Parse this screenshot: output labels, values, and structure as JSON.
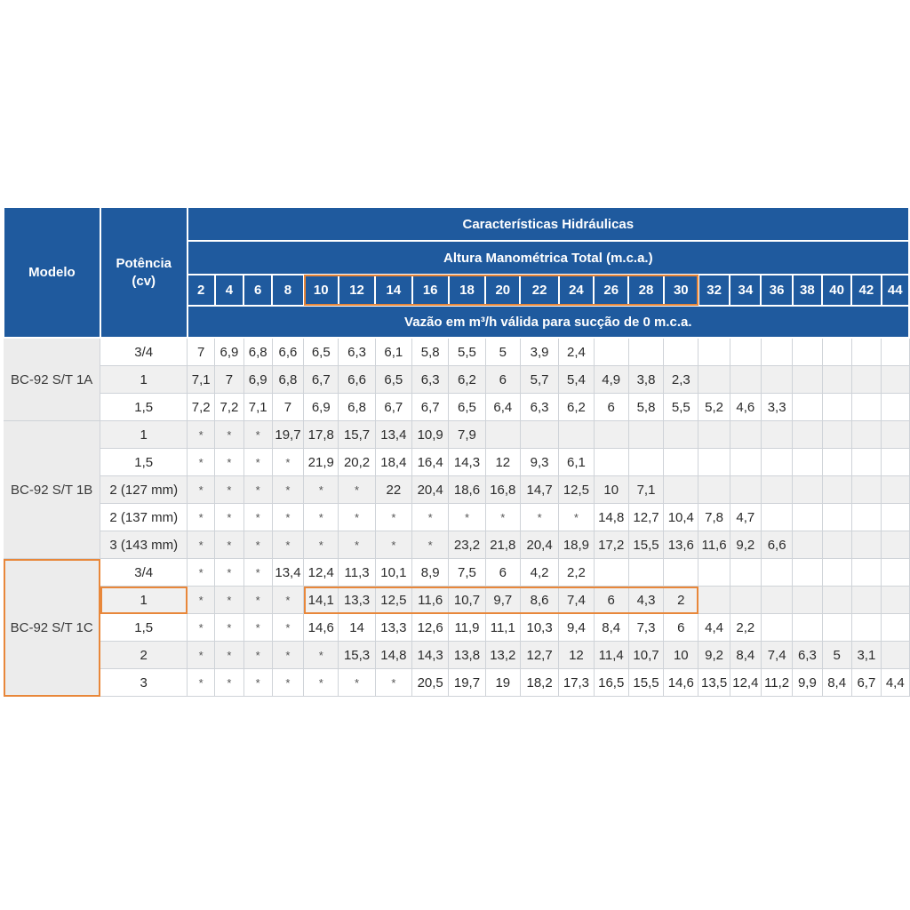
{
  "header": {
    "modelo": "Modelo",
    "potencia": "Potência (cv)",
    "caracteristicas": "Características Hidráulicas",
    "altura": "Altura Manométrica Total (m.c.a.)",
    "vazao": "Vazão em m³/h válida para sucção de 0 m.c.a.",
    "heads": [
      "2",
      "4",
      "6",
      "8",
      "10",
      "12",
      "14",
      "16",
      "18",
      "20",
      "22",
      "24",
      "26",
      "28",
      "30",
      "32",
      "34",
      "36",
      "38",
      "40",
      "42",
      "44"
    ]
  },
  "colors": {
    "header_bg": "#1f5a9e",
    "highlight": "#e8873a",
    "band": "#f0f0f0"
  },
  "groups": [
    {
      "model": "BC-92 S/T 1A",
      "rows": [
        {
          "potencia": "3/4",
          "values": [
            "7",
            "6,9",
            "6,8",
            "6,6",
            "6,5",
            "6,3",
            "6,1",
            "5,8",
            "5,5",
            "5",
            "3,9",
            "2,4",
            "",
            "",
            "",
            "",
            "",
            "",
            "",
            "",
            "",
            ""
          ]
        },
        {
          "potencia": "1",
          "values": [
            "7,1",
            "7",
            "6,9",
            "6,8",
            "6,7",
            "6,6",
            "6,5",
            "6,3",
            "6,2",
            "6",
            "5,7",
            "5,4",
            "4,9",
            "3,8",
            "2,3",
            "",
            "",
            "",
            "",
            "",
            "",
            ""
          ]
        },
        {
          "potencia": "1,5",
          "values": [
            "7,2",
            "7,2",
            "7,1",
            "7",
            "6,9",
            "6,8",
            "6,7",
            "6,7",
            "6,5",
            "6,4",
            "6,3",
            "6,2",
            "6",
            "5,8",
            "5,5",
            "5,2",
            "4,6",
            "3,3",
            "",
            "",
            "",
            ""
          ]
        }
      ]
    },
    {
      "model": "BC-92 S/T 1B",
      "rows": [
        {
          "potencia": "1",
          "values": [
            "*",
            "*",
            "*",
            "19,7",
            "17,8",
            "15,7",
            "13,4",
            "10,9",
            "7,9",
            "",
            "",
            "",
            "",
            "",
            "",
            "",
            "",
            "",
            "",
            "",
            "",
            ""
          ]
        },
        {
          "potencia": "1,5",
          "values": [
            "*",
            "*",
            "*",
            "*",
            "21,9",
            "20,2",
            "18,4",
            "16,4",
            "14,3",
            "12",
            "9,3",
            "6,1",
            "",
            "",
            "",
            "",
            "",
            "",
            "",
            "",
            "",
            ""
          ]
        },
        {
          "potencia": "2 (127 mm)",
          "values": [
            "*",
            "*",
            "*",
            "*",
            "*",
            "*",
            "22",
            "20,4",
            "18,6",
            "16,8",
            "14,7",
            "12,5",
            "10",
            "7,1",
            "",
            "",
            "",
            "",
            "",
            "",
            "",
            ""
          ]
        },
        {
          "potencia": "2 (137 mm)",
          "values": [
            "*",
            "*",
            "*",
            "*",
            "*",
            "*",
            "*",
            "*",
            "*",
            "*",
            "*",
            "*",
            "14,8",
            "12,7",
            "10,4",
            "7,8",
            "4,7",
            "",
            "",
            "",
            "",
            ""
          ]
        },
        {
          "potencia": "3 (143 mm)",
          "values": [
            "*",
            "*",
            "*",
            "*",
            "*",
            "*",
            "*",
            "*",
            "23,2",
            "21,8",
            "20,4",
            "18,9",
            "17,2",
            "15,5",
            "13,6",
            "11,6",
            "9,2",
            "6,6",
            "",
            "",
            "",
            ""
          ]
        }
      ]
    },
    {
      "model": "BC-92 S/T 1C",
      "rows": [
        {
          "potencia": "3/4",
          "values": [
            "*",
            "*",
            "*",
            "13,4",
            "12,4",
            "11,3",
            "10,1",
            "8,9",
            "7,5",
            "6",
            "4,2",
            "2,2",
            "",
            "",
            "",
            "",
            "",
            "",
            "",
            "",
            "",
            ""
          ]
        },
        {
          "potencia": "1",
          "values": [
            "*",
            "*",
            "*",
            "*",
            "14,1",
            "13,3",
            "12,5",
            "11,6",
            "10,7",
            "9,7",
            "8,6",
            "7,4",
            "6",
            "4,3",
            "2",
            "",
            "",
            "",
            "",
            "",
            "",
            ""
          ]
        },
        {
          "potencia": "1,5",
          "values": [
            "*",
            "*",
            "*",
            "*",
            "14,6",
            "14",
            "13,3",
            "12,6",
            "11,9",
            "11,1",
            "10,3",
            "9,4",
            "8,4",
            "7,3",
            "6",
            "4,4",
            "2,2",
            "",
            "",
            "",
            "",
            ""
          ]
        },
        {
          "potencia": "2",
          "values": [
            "*",
            "*",
            "*",
            "*",
            "*",
            "15,3",
            "14,8",
            "14,3",
            "13,8",
            "13,2",
            "12,7",
            "12",
            "11,4",
            "10,7",
            "10",
            "9,2",
            "8,4",
            "7,4",
            "6,3",
            "5",
            "3,1",
            ""
          ]
        },
        {
          "potencia": "3",
          "values": [
            "*",
            "*",
            "*",
            "*",
            "*",
            "*",
            "*",
            "20,5",
            "19,7",
            "19",
            "18,2",
            "17,3",
            "16,5",
            "15,5",
            "14,6",
            "13,5",
            "12,4",
            "11,2",
            "9,9",
            "8,4",
            "6,7",
            "4,4"
          ]
        }
      ]
    }
  ]
}
